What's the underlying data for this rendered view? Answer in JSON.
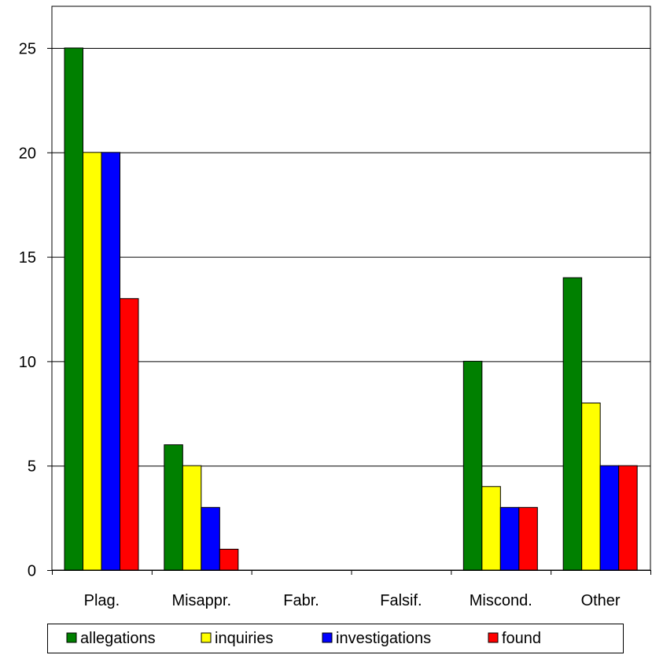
{
  "chart_data": {
    "type": "bar",
    "categories": [
      "Plag.",
      "Misappr.",
      "Fabr.",
      "Falsif.",
      "Miscond.",
      "Other"
    ],
    "series": [
      {
        "name": "allegations",
        "color": "#008000",
        "values": [
          25,
          6,
          0,
          0,
          10,
          14
        ]
      },
      {
        "name": "inquiries",
        "color": "#ffff00",
        "values": [
          20,
          5,
          0,
          0,
          4,
          8
        ]
      },
      {
        "name": "investigations",
        "color": "#0000ff",
        "values": [
          20,
          3,
          0,
          0,
          3,
          5
        ]
      },
      {
        "name": "found",
        "color": "#ff0000",
        "values": [
          13,
          1,
          0,
          0,
          3,
          5
        ]
      }
    ],
    "yticks": [
      "0",
      "5",
      "10",
      "15",
      "20",
      "25"
    ],
    "ylim": [
      0,
      25
    ],
    "grid": true,
    "legend_position": "bottom",
    "title": "",
    "xlabel": "",
    "ylabel": ""
  }
}
